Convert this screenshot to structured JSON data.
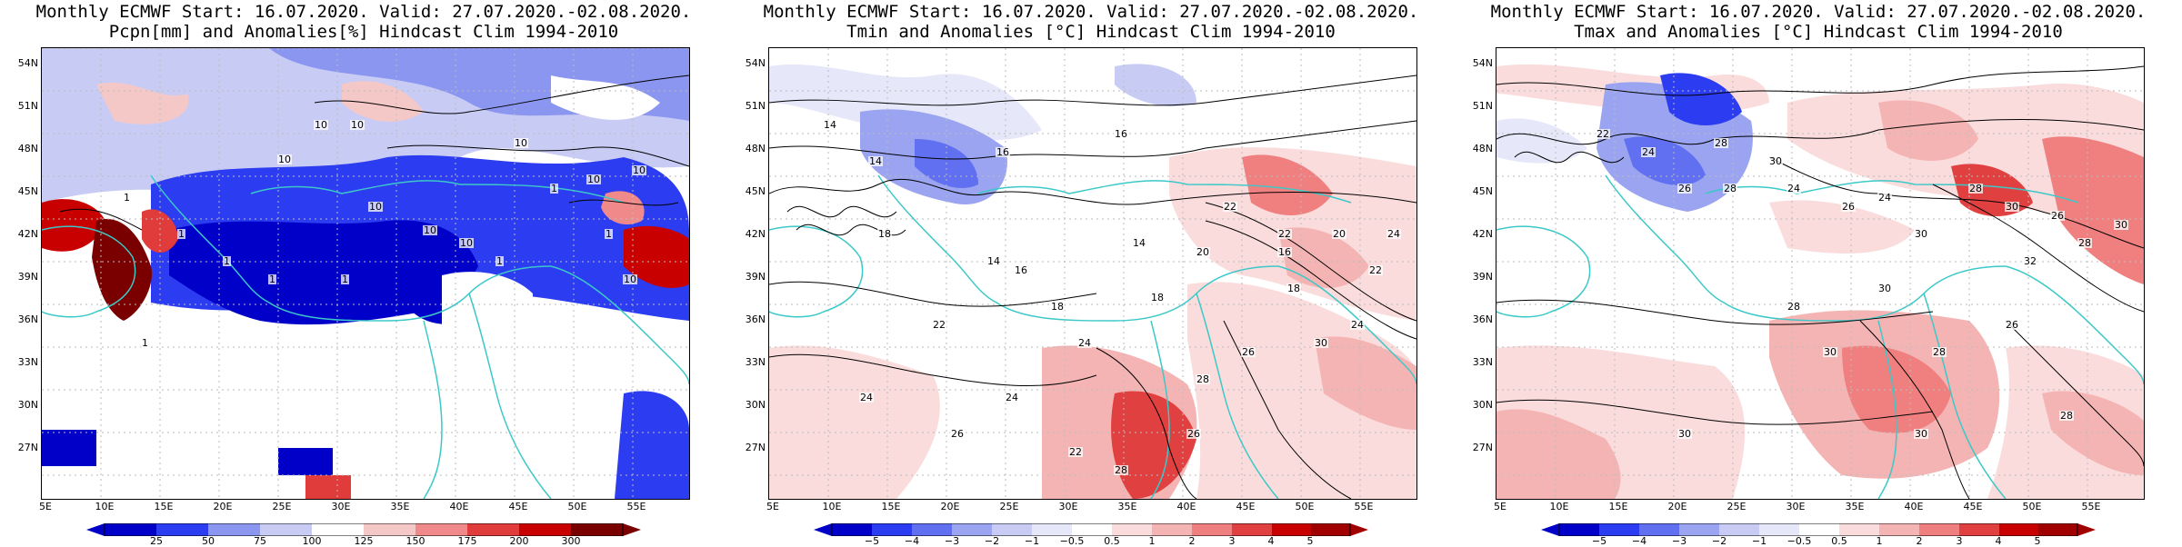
{
  "panels": [
    {
      "title_line1": "Monthly ECMWF Start: 16.07.2020. Valid: 27.07.2020.-02.08.2020.",
      "title_line2": "Pcpn[mm] and Anomalies[%] Hindcast Clim 1994-2010",
      "latitudes": [
        "54N",
        "51N",
        "48N",
        "45N",
        "42N",
        "39N",
        "36N",
        "33N",
        "30N",
        "27N"
      ],
      "longitudes": [
        "5E",
        "10E",
        "15E",
        "20E",
        "25E",
        "30E",
        "35E",
        "40E",
        "45E",
        "50E",
        "55E"
      ],
      "colorbar_ticks": [
        "25",
        "50",
        "75",
        "100",
        "125",
        "150",
        "175",
        "200",
        "300"
      ],
      "contour_labels": [
        "10",
        "10",
        "10",
        "10",
        "10",
        "10",
        "10",
        "1",
        "1",
        "1",
        "1",
        "1",
        "1",
        "1",
        "1",
        "10",
        "10",
        "10",
        "1"
      ]
    },
    {
      "title_line1": "Monthly ECMWF Start: 16.07.2020. Valid: 27.07.2020.-02.08.2020.",
      "title_line2": "Tmin and Anomalies [°C] Hindcast Clim 1994-2010",
      "latitudes": [
        "54N",
        "51N",
        "48N",
        "45N",
        "42N",
        "39N",
        "36N",
        "33N",
        "30N",
        "27N"
      ],
      "longitudes": [
        "5E",
        "10E",
        "15E",
        "20E",
        "25E",
        "30E",
        "35E",
        "40E",
        "45E",
        "50E",
        "55E"
      ],
      "colorbar_ticks": [
        "−5",
        "−4",
        "−3",
        "−2",
        "−1",
        "−0.5",
        "0.5",
        "1",
        "2",
        "3",
        "4",
        "5"
      ],
      "contour_labels": [
        "14",
        "14",
        "16",
        "16",
        "18",
        "14",
        "14",
        "16",
        "18",
        "18",
        "22",
        "22",
        "20",
        "24",
        "22",
        "24",
        "26",
        "24",
        "22",
        "28",
        "26",
        "26",
        "28",
        "30",
        "24",
        "18",
        "16",
        "20",
        "22",
        "24"
      ]
    },
    {
      "title_line1": "Monthly ECMWF Start: 16.07.2020. Valid: 27.07.2020.-02.08.2020.",
      "title_line2": "Tmax and Anomalies [°C] Hindcast Clim 1994-2010",
      "latitudes": [
        "54N",
        "51N",
        "48N",
        "45N",
        "42N",
        "39N",
        "36N",
        "33N",
        "30N",
        "27N"
      ],
      "longitudes": [
        "5E",
        "10E",
        "15E",
        "20E",
        "25E",
        "30E",
        "35E",
        "40E",
        "45E",
        "50E",
        "55E"
      ],
      "colorbar_ticks": [
        "−5",
        "−4",
        "−3",
        "−2",
        "−1",
        "−0.5",
        "0.5",
        "1",
        "2",
        "3",
        "4",
        "5"
      ],
      "contour_labels": [
        "22",
        "24",
        "26",
        "28",
        "24",
        "28",
        "30",
        "26",
        "24",
        "30",
        "28",
        "30",
        "26",
        "28",
        "30",
        "32",
        "30",
        "28",
        "30",
        "28",
        "26",
        "30",
        "30",
        "28"
      ]
    }
  ],
  "colors": {
    "coast": "#3cc8c8",
    "contour": "#000000",
    "grid": "#bbbbbb",
    "precip_scale": [
      "#0000c8",
      "#2c3cf0",
      "#8a96f0",
      "#c8ccf5",
      "#ffffff",
      "#f5c8c8",
      "#f08a8a",
      "#e03c3c",
      "#c80000",
      "#7a0000"
    ],
    "temp_scale": [
      "#0000c8",
      "#2c3cf0",
      "#6070f0",
      "#9aa4f0",
      "#c8ccf5",
      "#e6e8fa",
      "#ffffff",
      "#fadcdc",
      "#f5b4b4",
      "#f08080",
      "#e04040",
      "#c80000",
      "#a00000"
    ]
  }
}
